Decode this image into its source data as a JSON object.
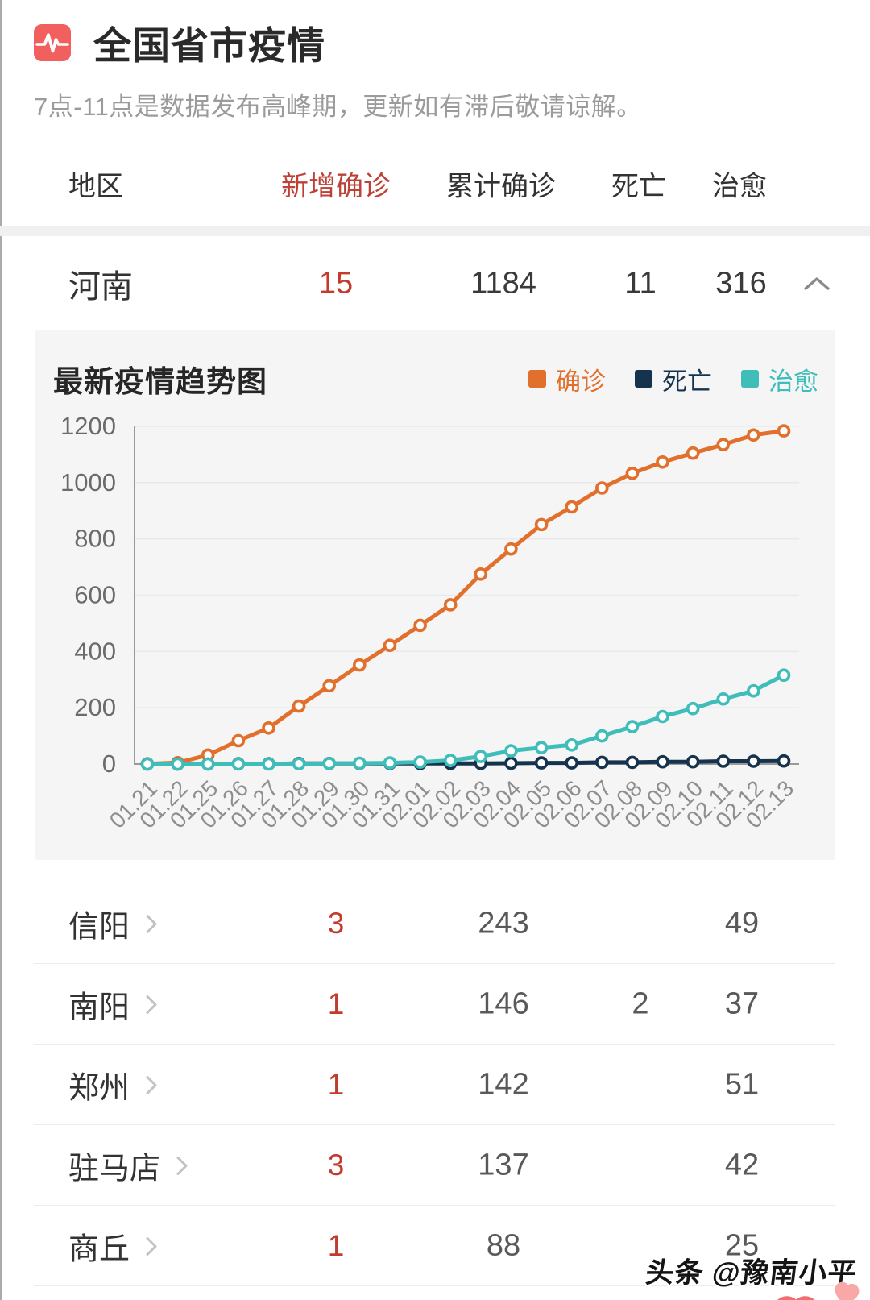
{
  "header": {
    "title": "全国省市疫情",
    "icon": "pulse-icon",
    "subtitle": "7点-11点是数据发布高峰期，更新如有滞后敬请谅解。"
  },
  "table": {
    "columns": {
      "region": "地区",
      "new_confirmed": "新增确诊",
      "total_confirmed": "累计确诊",
      "deaths": "死亡",
      "cured": "治愈"
    },
    "province_row": {
      "name": "河南",
      "new_confirmed": "15",
      "total_confirmed": "1184",
      "deaths": "11",
      "cured": "316",
      "state_icon": "chevron-up-icon"
    },
    "city_rows": [
      {
        "name": "信阳",
        "new_confirmed": "3",
        "total_confirmed": "243",
        "deaths": "",
        "cured": "49"
      },
      {
        "name": "南阳",
        "new_confirmed": "1",
        "total_confirmed": "146",
        "deaths": "2",
        "cured": "37"
      },
      {
        "name": "郑州",
        "new_confirmed": "1",
        "total_confirmed": "142",
        "deaths": "",
        "cured": "51"
      },
      {
        "name": "驻马店",
        "new_confirmed": "3",
        "total_confirmed": "137",
        "deaths": "",
        "cured": "42"
      },
      {
        "name": "商丘",
        "new_confirmed": "1",
        "total_confirmed": "88",
        "deaths": "",
        "cured": "25"
      }
    ]
  },
  "chart": {
    "panel_title": "最新疫情趋势图",
    "legend": [
      {
        "label": "确诊",
        "color": "#e1702c"
      },
      {
        "label": "死亡",
        "color": "#16334d"
      },
      {
        "label": "治愈",
        "color": "#3fbdb9"
      }
    ]
  },
  "chart_data": {
    "type": "line",
    "title": "最新疫情趋势图",
    "categories": [
      "01.21",
      "01.22",
      "01.25",
      "01.26",
      "01.27",
      "01.28",
      "01.29",
      "01.30",
      "01.31",
      "02.01",
      "02.02",
      "02.03",
      "02.04",
      "02.05",
      "02.06",
      "02.07",
      "02.08",
      "02.09",
      "02.10",
      "02.11",
      "02.12",
      "02.13"
    ],
    "series": [
      {
        "name": "确诊",
        "color": "#e1702c",
        "values": [
          1,
          5,
          32,
          83,
          128,
          206,
          278,
          352,
          422,
          493,
          566,
          675,
          764,
          851,
          914,
          981,
          1033,
          1073,
          1105,
          1135,
          1169,
          1184
        ]
      },
      {
        "name": "死亡",
        "color": "#16334d",
        "values": [
          0,
          0,
          0,
          1,
          1,
          2,
          2,
          2,
          2,
          2,
          2,
          2,
          3,
          4,
          4,
          6,
          6,
          8,
          8,
          10,
          10,
          11
        ]
      },
      {
        "name": "治愈",
        "color": "#3fbdb9",
        "values": [
          0,
          0,
          0,
          0,
          0,
          1,
          2,
          3,
          4,
          7,
          13,
          27,
          47,
          58,
          68,
          100,
          133,
          169,
          197,
          231,
          260,
          316
        ]
      }
    ],
    "draw_order": [
      0,
      1,
      2
    ],
    "xlabel": "",
    "ylabel": "",
    "ylim": [
      0,
      1200
    ],
    "yticks": [
      0,
      200,
      400,
      600,
      800,
      1000,
      1200
    ],
    "grid": true,
    "legend_position": "top-right"
  },
  "watermark": {
    "text": "头条 @豫南小平"
  },
  "colors": {
    "accent_red": "#f25f5f",
    "text_red": "#c23b2d",
    "header_red": "#bd4136",
    "panel_bg": "#f5f5f6",
    "confirmed": "#e1702c",
    "deaths": "#16334d",
    "cured": "#3fbdb9",
    "heart_red": "#f26d6d",
    "heart_pink": "#f9a8a8"
  }
}
